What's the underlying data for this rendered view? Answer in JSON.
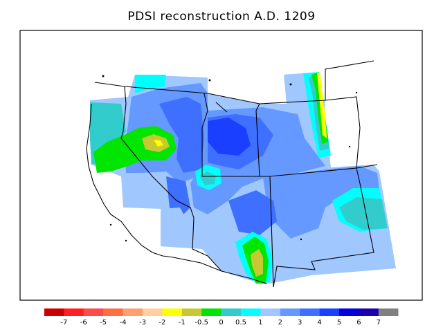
{
  "title": "PDSI reconstruction A.D. 1209",
  "legend": {
    "colors": [
      "#cc0000",
      "#ff1f1f",
      "#ff4a4a",
      "#ff7040",
      "#ff9f70",
      "#ffcf9f",
      "#ffff00",
      "#c8c832",
      "#00e600",
      "#33cccc",
      "#00ffff",
      "#a0c8ff",
      "#6699ff",
      "#3f6fff",
      "#1a3fff",
      "#0000e0",
      "#1a00b0",
      "#808080"
    ],
    "labels": [
      "-7",
      "-6",
      "-5",
      "-4",
      "-3",
      "-2",
      "-1",
      "-0.5",
      "0",
      "0.5",
      "1",
      "2",
      "3",
      "4",
      "5",
      "6",
      "7"
    ]
  },
  "palette": {
    "light_blue": "#a0c8ff",
    "mid_blue": "#6699ff",
    "deep_blue": "#3f6fff",
    "dark_blue": "#1a3fff",
    "teal": "#33cccc",
    "cyan": "#00ffff",
    "green": "#00e600",
    "olive": "#c8c832",
    "yellow": "#ffff00"
  }
}
